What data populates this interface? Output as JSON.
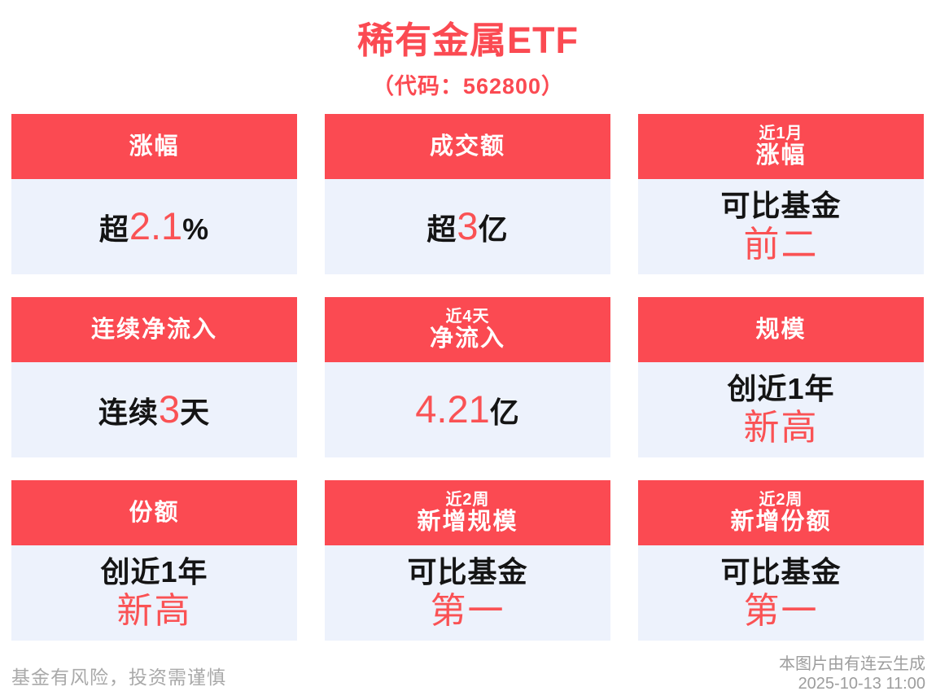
{
  "title": "稀有金属ETF",
  "subtitle": "（代码：562800）",
  "colors": {
    "brand_red": "#fb4a52",
    "accent_red": "#fa5254",
    "card_body_bg": "#edf2fc",
    "text_dark": "#141414",
    "footer_gray": "#a9a9a9"
  },
  "cards": [
    {
      "header_top": "",
      "header": "涨幅",
      "prefix": "超",
      "accent": "2.1",
      "suffix": "%",
      "line2": ""
    },
    {
      "header_top": "",
      "header": "成交额",
      "prefix": "超",
      "accent": "3",
      "suffix": "亿",
      "line2": ""
    },
    {
      "header_top": "近1月",
      "header": "涨幅",
      "prefix": "可比基金",
      "accent": "",
      "suffix": "",
      "line2": "前二"
    },
    {
      "header_top": "",
      "header": "连续净流入",
      "prefix": "连续",
      "accent": "3",
      "suffix": "天",
      "line2": ""
    },
    {
      "header_top": "近4天",
      "header": "净流入",
      "prefix": "",
      "accent": "4.21",
      "suffix": "亿",
      "line2": ""
    },
    {
      "header_top": "",
      "header": "规模",
      "prefix": "创近1年",
      "accent": "",
      "suffix": "",
      "line2": "新高"
    },
    {
      "header_top": "",
      "header": "份额",
      "prefix": "创近1年",
      "accent": "",
      "suffix": "",
      "line2": "新高"
    },
    {
      "header_top": "近2周",
      "header": "新增规模",
      "prefix": "可比基金",
      "accent": "",
      "suffix": "",
      "line2": "第一"
    },
    {
      "header_top": "近2周",
      "header": "新增份额",
      "prefix": "可比基金",
      "accent": "",
      "suffix": "",
      "line2": "第一"
    }
  ],
  "footer": {
    "disclaimer": "基金有风险，投资需谨慎",
    "source": "本图片由有连云生成",
    "timestamp": "2025-10-13 11:00"
  }
}
